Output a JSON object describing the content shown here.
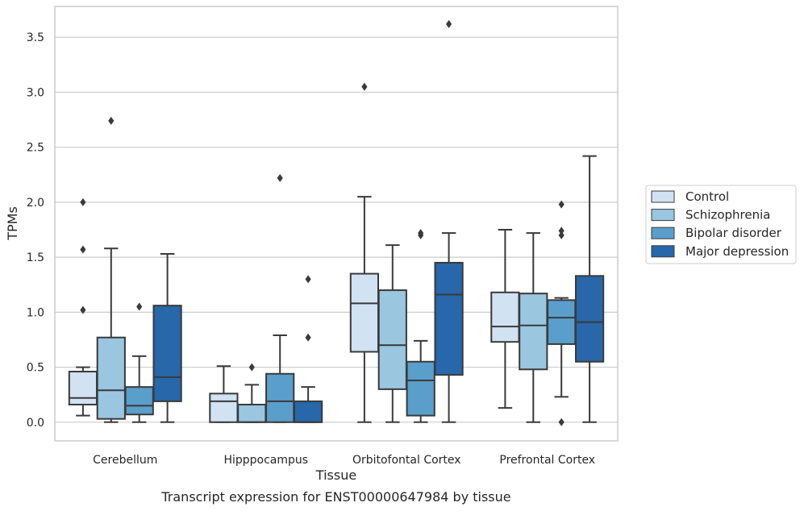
{
  "chart_data": {
    "type": "box",
    "caption": "Transcript expression for ENST00000647984 by tissue",
    "xlabel": "Tissue",
    "ylabel": "TPMs",
    "ylim": [
      -0.17,
      3.78
    ],
    "yticks": [
      "0.0",
      "0.5",
      "1.0",
      "1.5",
      "2.0",
      "2.5",
      "3.0",
      "3.5"
    ],
    "grid": "horizontal",
    "legend_position": "right",
    "categories": [
      "Cerebellum",
      "Hipppocampus",
      "Orbitofontal Cortex",
      "Prefrontal Cortex"
    ],
    "series": [
      {
        "name": "Control",
        "color": "#d1e2f2",
        "boxes": [
          {
            "whisker_low": 0.06,
            "q1": 0.16,
            "median": 0.22,
            "q3": 0.46,
            "whisker_high": 0.5,
            "outliers": [
              2.0,
              1.57,
              1.02
            ]
          },
          {
            "whisker_low": 0.0,
            "q1": 0.0,
            "median": 0.19,
            "q3": 0.26,
            "whisker_high": 0.51,
            "outliers": []
          },
          {
            "whisker_low": 0.0,
            "q1": 0.64,
            "median": 1.08,
            "q3": 1.35,
            "whisker_high": 2.05,
            "outliers": [
              3.05
            ]
          },
          {
            "whisker_low": 0.13,
            "q1": 0.73,
            "median": 0.87,
            "q3": 1.18,
            "whisker_high": 1.75,
            "outliers": []
          }
        ]
      },
      {
        "name": "Schizophrenia",
        "color": "#9ac6e0",
        "boxes": [
          {
            "whisker_low": 0.0,
            "q1": 0.03,
            "median": 0.29,
            "q3": 0.77,
            "whisker_high": 1.58,
            "outliers": [
              2.74
            ]
          },
          {
            "whisker_low": 0.0,
            "q1": 0.0,
            "median": 0.0,
            "q3": 0.16,
            "whisker_high": 0.34,
            "outliers": [
              0.5
            ]
          },
          {
            "whisker_low": 0.0,
            "q1": 0.3,
            "median": 0.7,
            "q3": 1.2,
            "whisker_high": 1.61,
            "outliers": []
          },
          {
            "whisker_low": 0.0,
            "q1": 0.48,
            "median": 0.88,
            "q3": 1.17,
            "whisker_high": 1.72,
            "outliers": []
          }
        ]
      },
      {
        "name": "Bipolar disorder",
        "color": "#5a9ecb",
        "boxes": [
          {
            "whisker_low": 0.0,
            "q1": 0.07,
            "median": 0.15,
            "q3": 0.32,
            "whisker_high": 0.6,
            "outliers": [
              1.05
            ]
          },
          {
            "whisker_low": 0.0,
            "q1": 0.0,
            "median": 0.19,
            "q3": 0.44,
            "whisker_high": 0.79,
            "outliers": [
              2.22
            ]
          },
          {
            "whisker_low": 0.0,
            "q1": 0.06,
            "median": 0.38,
            "q3": 0.55,
            "whisker_high": 0.74,
            "outliers": [
              1.72,
              1.7
            ]
          },
          {
            "whisker_low": 0.23,
            "q1": 0.71,
            "median": 0.95,
            "q3": 1.11,
            "whisker_high": 1.13,
            "outliers": [
              1.98,
              1.74,
              1.7,
              0.0
            ]
          }
        ]
      },
      {
        "name": "Major depression",
        "color": "#2767aa",
        "boxes": [
          {
            "whisker_low": 0.0,
            "q1": 0.19,
            "median": 0.41,
            "q3": 1.06,
            "whisker_high": 1.53,
            "outliers": []
          },
          {
            "whisker_low": 0.0,
            "q1": 0.0,
            "median": 0.0,
            "q3": 0.19,
            "whisker_high": 0.32,
            "outliers": [
              1.3,
              0.77
            ]
          },
          {
            "whisker_low": 0.0,
            "q1": 0.43,
            "median": 1.16,
            "q3": 1.45,
            "whisker_high": 1.72,
            "outliers": [
              3.62
            ]
          },
          {
            "whisker_low": 0.0,
            "q1": 0.55,
            "median": 0.91,
            "q3": 1.33,
            "whisker_high": 2.42,
            "outliers": []
          }
        ]
      }
    ]
  }
}
